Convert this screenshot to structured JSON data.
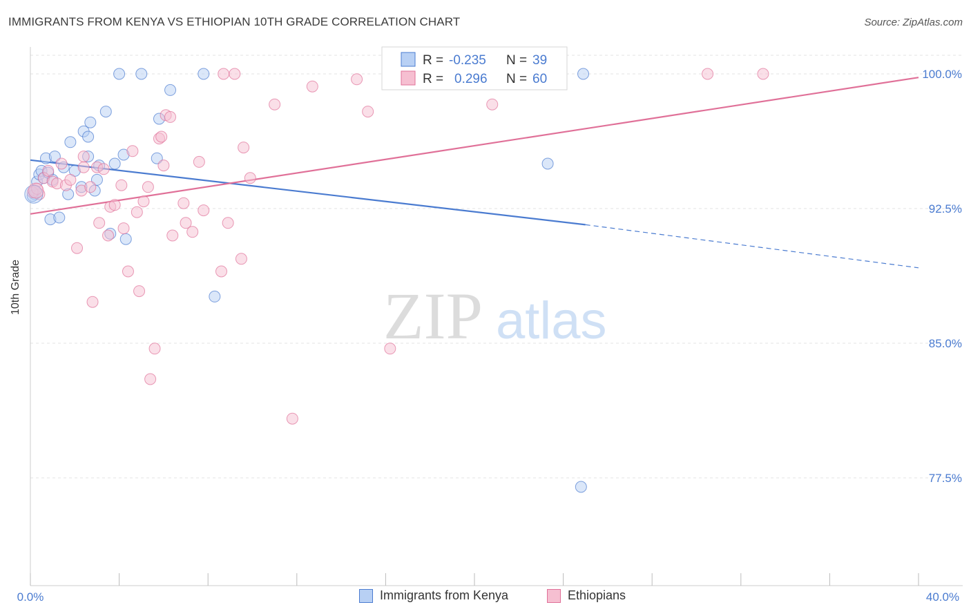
{
  "title": "IMMIGRANTS FROM KENYA VS ETHIOPIAN 10TH GRADE CORRELATION CHART",
  "source": "Source: ZipAtlas.com",
  "watermark": {
    "zip": "ZIP",
    "atlas": "atlas"
  },
  "colors": {
    "kenya": "#4a7bd0",
    "kenya_fill": "#b8d0f4",
    "ethiopia": "#e07098",
    "ethiopia_fill": "#f6bfd1",
    "axis_text": "#4a7bd0",
    "grid": "#e3e3e3"
  },
  "legend": {
    "kenya": {
      "r_label": "R = ",
      "r_value": "-0.235",
      "n_label": "N = ",
      "n_value": "39"
    },
    "ethiopia": {
      "r_label": "R = ",
      "r_value": "0.296",
      "n_label": "N = ",
      "n_value": "60"
    }
  },
  "chart_data": {
    "type": "scatter",
    "title": "IMMIGRANTS FROM KENYA VS ETHIOPIAN 10TH GRADE CORRELATION CHART",
    "xlabel": "",
    "ylabel": "10th Grade",
    "xlim": [
      0,
      40
    ],
    "ylim": [
      71.5,
      101.5
    ],
    "x_tick_labels": [
      "0.0%",
      "40.0%"
    ],
    "y_ticks": [
      77.5,
      85.0,
      92.5,
      100.0
    ],
    "y_tick_labels": [
      "77.5%",
      "85.0%",
      "92.5%",
      "100.0%"
    ],
    "grid": true,
    "legend_position": "bottom",
    "series": [
      {
        "name": "Immigrants from Kenya",
        "color": "#4a7bd0",
        "trend": {
          "x": [
            0,
            25
          ],
          "y": [
            95.2,
            91.6
          ],
          "dashed_to": [
            40,
            89.2
          ]
        },
        "points": [
          [
            0.2,
            93.3
          ],
          [
            0.3,
            94.0
          ],
          [
            0.4,
            94.4
          ],
          [
            0.5,
            94.6
          ],
          [
            0.6,
            94.2
          ],
          [
            0.7,
            95.3
          ],
          [
            0.8,
            94.5
          ],
          [
            0.9,
            91.9
          ],
          [
            1.0,
            94.1
          ],
          [
            1.1,
            95.4
          ],
          [
            1.3,
            92.0
          ],
          [
            1.5,
            94.8
          ],
          [
            1.7,
            93.3
          ],
          [
            1.8,
            96.2
          ],
          [
            2.0,
            94.6
          ],
          [
            2.3,
            93.7
          ],
          [
            2.4,
            96.8
          ],
          [
            2.6,
            95.4
          ],
          [
            2.6,
            96.5
          ],
          [
            2.7,
            97.3
          ],
          [
            2.9,
            93.5
          ],
          [
            3.0,
            94.1
          ],
          [
            3.1,
            94.9
          ],
          [
            3.4,
            97.9
          ],
          [
            3.6,
            91.1
          ],
          [
            3.8,
            95.0
          ],
          [
            4.0,
            100.0
          ],
          [
            4.2,
            95.5
          ],
          [
            4.3,
            90.8
          ],
          [
            5.0,
            100.0
          ],
          [
            5.7,
            95.3
          ],
          [
            5.8,
            97.5
          ],
          [
            6.3,
            99.1
          ],
          [
            7.8,
            100.0
          ],
          [
            8.3,
            87.6
          ],
          [
            23.3,
            95.0
          ],
          [
            24.8,
            77.0
          ],
          [
            24.9,
            100.0
          ],
          [
            0.1,
            93.2
          ]
        ]
      },
      {
        "name": "Ethiopians",
        "color": "#e07098",
        "trend": {
          "x": [
            0,
            40
          ],
          "y": [
            92.2,
            99.8
          ]
        },
        "points": [
          [
            0.2,
            93.5
          ],
          [
            0.4,
            93.3
          ],
          [
            0.6,
            94.2
          ],
          [
            0.8,
            94.6
          ],
          [
            1.0,
            94.0
          ],
          [
            1.2,
            93.9
          ],
          [
            1.4,
            95.0
          ],
          [
            1.6,
            93.8
          ],
          [
            1.8,
            94.1
          ],
          [
            2.1,
            90.3
          ],
          [
            2.3,
            93.5
          ],
          [
            2.4,
            94.8
          ],
          [
            2.4,
            95.4
          ],
          [
            2.7,
            93.7
          ],
          [
            2.8,
            87.3
          ],
          [
            3.0,
            94.8
          ],
          [
            3.1,
            91.7
          ],
          [
            3.3,
            94.7
          ],
          [
            3.5,
            91.0
          ],
          [
            3.6,
            92.6
          ],
          [
            3.8,
            92.7
          ],
          [
            4.1,
            93.8
          ],
          [
            4.2,
            91.4
          ],
          [
            4.4,
            89.0
          ],
          [
            4.6,
            95.7
          ],
          [
            4.8,
            92.3
          ],
          [
            4.9,
            87.9
          ],
          [
            5.1,
            92.9
          ],
          [
            5.3,
            93.7
          ],
          [
            5.4,
            83.0
          ],
          [
            5.6,
            84.7
          ],
          [
            5.8,
            96.4
          ],
          [
            5.9,
            96.5
          ],
          [
            6.0,
            94.9
          ],
          [
            6.1,
            97.7
          ],
          [
            6.3,
            97.6
          ],
          [
            6.4,
            91.0
          ],
          [
            6.9,
            92.8
          ],
          [
            7.0,
            91.7
          ],
          [
            7.3,
            91.2
          ],
          [
            7.6,
            95.1
          ],
          [
            7.8,
            92.4
          ],
          [
            8.6,
            89.0
          ],
          [
            8.7,
            100.0
          ],
          [
            8.9,
            91.7
          ],
          [
            9.2,
            100.0
          ],
          [
            9.5,
            89.7
          ],
          [
            9.6,
            95.9
          ],
          [
            9.9,
            94.2
          ],
          [
            11.0,
            98.3
          ],
          [
            11.8,
            80.8
          ],
          [
            12.7,
            99.3
          ],
          [
            14.7,
            99.7
          ],
          [
            15.2,
            97.9
          ],
          [
            16.2,
            84.7
          ],
          [
            20.8,
            98.3
          ],
          [
            30.5,
            100.0
          ],
          [
            33.0,
            100.0
          ],
          [
            0.1,
            93.4
          ],
          [
            0.3,
            93.6
          ]
        ]
      }
    ]
  }
}
